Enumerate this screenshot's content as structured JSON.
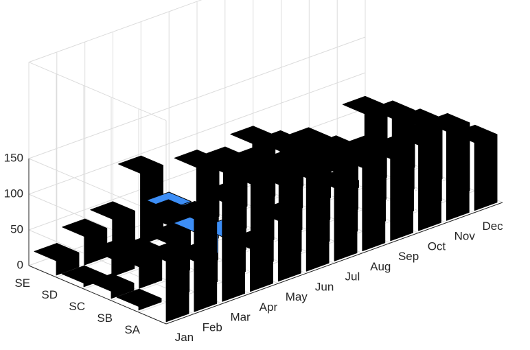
{
  "chart_data": {
    "type": "bar3",
    "title": "",
    "xlabel": "",
    "ylabel": "",
    "zlabel": "",
    "months": [
      "Jan",
      "Feb",
      "Mar",
      "Apr",
      "May",
      "Jun",
      "Jul",
      "Aug",
      "Sep",
      "Oct",
      "Nov",
      "Dec"
    ],
    "stations": [
      "SA",
      "SB",
      "SC",
      "SD",
      "SE"
    ],
    "zticks": [
      0,
      50,
      100,
      150
    ],
    "zlim": [
      0,
      150
    ],
    "grid": true,
    "values": {
      "SA": [
        85,
        130,
        140,
        60,
        85,
        150,
        125,
        130,
        115,
        120,
        125,
        95
      ],
      "SB": [
        5,
        80,
        40,
        60,
        120,
        105,
        100,
        110,
        105,
        90,
        95,
        95
      ],
      "SC": [
        10,
        30,
        75,
        50,
        120,
        100,
        95,
        110,
        90,
        55,
        60,
        85
      ],
      "SD": [
        5,
        25,
        15,
        55,
        30,
        95,
        85,
        95,
        85,
        10,
        45,
        80
      ],
      "SE": [
        20,
        40,
        50,
        100,
        35,
        80,
        70,
        85,
        60,
        30,
        20,
        70
      ]
    },
    "highlight": [
      {
        "station": "SB",
        "month": "Apr"
      },
      {
        "station": "SC",
        "month": "Apr"
      },
      {
        "station": "SE",
        "month": "May"
      }
    ],
    "colors": {
      "bar": "#000000",
      "bar_edge": "#000000",
      "highlight": "#3d8ef6",
      "highlight_edge": "#000000",
      "grid": "#dcdcdc",
      "text": "#262626"
    }
  }
}
